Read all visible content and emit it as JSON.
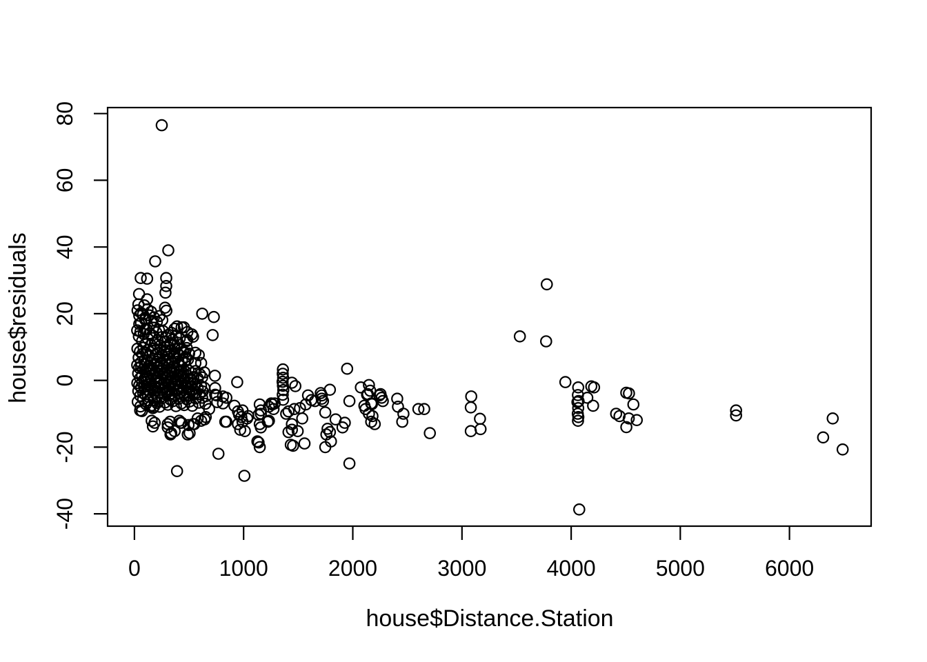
{
  "chart_data": {
    "type": "scatter",
    "title": "",
    "xlabel": "house$Distance.Station",
    "ylabel": "house$residuals",
    "x_ticks": [
      0,
      1000,
      2000,
      3000,
      4000,
      5000,
      6000
    ],
    "y_ticks": [
      -40,
      -20,
      0,
      20,
      40,
      60,
      80
    ],
    "xlim": [
      -246,
      6748
    ],
    "ylim": [
      -43.7,
      81.8
    ],
    "grid": false,
    "legend": "none",
    "marker": "open-circle",
    "marker_color": "#000000",
    "background_color": "#ffffff",
    "points": [
      [
        250,
        76.5
      ],
      [
        310,
        39
      ],
      [
        190,
        35.7
      ],
      [
        57,
        30.7
      ],
      [
        116,
        30.5
      ],
      [
        291,
        30.7
      ],
      [
        291,
        28.3
      ],
      [
        284,
        26.3
      ],
      [
        42,
        25.9
      ],
      [
        116,
        24.3
      ],
      [
        36,
        22.8
      ],
      [
        90,
        22.5
      ],
      [
        280,
        21.8
      ],
      [
        292,
        20.9
      ],
      [
        44,
        19.4
      ],
      [
        101,
        18.6
      ],
      [
        621,
        20
      ],
      [
        727,
        19
      ],
      [
        158,
        17.9
      ],
      [
        390,
        16.2
      ],
      [
        432,
        15.9
      ],
      [
        44,
        16.9
      ],
      [
        95,
        15.2
      ],
      [
        485,
        14.5
      ],
      [
        526,
        13.8
      ],
      [
        537,
        13.1
      ],
      [
        474,
        11.7
      ],
      [
        716,
        13.6
      ],
      [
        453,
        15.9
      ],
      [
        368,
        15.5
      ],
      [
        484,
        12.1
      ],
      [
        463,
        8.3
      ],
      [
        558,
        8.3
      ],
      [
        589,
        7.6
      ],
      [
        611,
        5.2
      ],
      [
        558,
        5.2
      ],
      [
        737,
        1.4
      ],
      [
        941,
        -0.5
      ],
      [
        739,
        -2.3
      ],
      [
        739,
        -4.3
      ],
      [
        752,
        -4.5
      ],
      [
        811,
        -4.8
      ],
      [
        842,
        -5.2
      ],
      [
        758,
        -6.5
      ],
      [
        811,
        -6.9
      ],
      [
        916,
        -7.6
      ],
      [
        1148,
        -7.2
      ],
      [
        1253,
        -6.9
      ],
      [
        990,
        -9
      ],
      [
        1042,
        -10.7
      ],
      [
        958,
        -10.3
      ],
      [
        1158,
        -10
      ],
      [
        1232,
        -12.1
      ],
      [
        1148,
        -13.1
      ],
      [
        1158,
        -14.1
      ],
      [
        990,
        -12.4
      ],
      [
        1011,
        -15.2
      ],
      [
        842,
        -12.4
      ],
      [
        1126,
        -18.3
      ],
      [
        1148,
        -20
      ],
      [
        769,
        -22
      ],
      [
        390,
        -27.2
      ],
      [
        1007,
        -28.6
      ],
      [
        832,
        -12.4
      ],
      [
        948,
        -9.3
      ],
      [
        979,
        -11
      ],
      [
        1032,
        -11.4
      ],
      [
        948,
        -13.1
      ],
      [
        969,
        -14.8
      ],
      [
        1158,
        -9
      ],
      [
        1137,
        -10.3
      ],
      [
        1221,
        -12.4
      ],
      [
        1137,
        -18.6
      ],
      [
        1263,
        -7.2
      ],
      [
        1274,
        -8.6
      ],
      [
        1411,
        -9.3
      ],
      [
        1442,
        -13.1
      ],
      [
        1411,
        -15.5
      ],
      [
        1432,
        -19.3
      ],
      [
        52,
        -9
      ],
      [
        147,
        -7.9
      ],
      [
        169,
        -8.3
      ],
      [
        158,
        -12.1
      ],
      [
        169,
        -13.8
      ],
      [
        305,
        -14.1
      ],
      [
        330,
        -16.2
      ],
      [
        305,
        -13.1
      ],
      [
        411,
        -12.1
      ],
      [
        432,
        -12.7
      ],
      [
        495,
        -13.4
      ],
      [
        537,
        -13.1
      ],
      [
        505,
        -15.8
      ],
      [
        579,
        -11.4
      ],
      [
        653,
        -11
      ],
      [
        684,
        -8.6
      ],
      [
        68,
        -9.2
      ],
      [
        179,
        -7.9
      ],
      [
        185,
        -12.7
      ],
      [
        337,
        -15.8
      ],
      [
        368,
        -15.2
      ],
      [
        327,
        -12.4
      ],
      [
        421,
        -12.7
      ],
      [
        488,
        -16.2
      ],
      [
        548,
        -13.1
      ],
      [
        611,
        -12.1
      ],
      [
        642,
        -11.7
      ],
      [
        1360,
        3.3
      ],
      [
        1358,
        2
      ],
      [
        1362,
        0.8
      ],
      [
        1357,
        -0.4
      ],
      [
        1360,
        -1.6
      ],
      [
        1363,
        -2.9
      ],
      [
        1358,
        -4.3
      ],
      [
        1361,
        -5.8
      ],
      [
        1442,
        -0.7
      ],
      [
        1474,
        -1.7
      ],
      [
        1948,
        3.5
      ],
      [
        1706,
        -3.8
      ],
      [
        1716,
        -4.5
      ],
      [
        1716,
        -5.5
      ],
      [
        1727,
        -6.2
      ],
      [
        1790,
        -2.8
      ],
      [
        1590,
        -4.5
      ],
      [
        1621,
        -5.9
      ],
      [
        1653,
        -6.2
      ],
      [
        1232,
        -7.9
      ],
      [
        1284,
        -6.9
      ],
      [
        1390,
        -10
      ],
      [
        1464,
        -8.6
      ],
      [
        1516,
        -8.3
      ],
      [
        1569,
        -7.2
      ],
      [
        1537,
        -11.4
      ],
      [
        1442,
        -14.8
      ],
      [
        1495,
        -15.2
      ],
      [
        1453,
        -19.6
      ],
      [
        1558,
        -18.9
      ],
      [
        1748,
        -9.6
      ],
      [
        1769,
        -14.5
      ],
      [
        1790,
        -15.5
      ],
      [
        1758,
        -16.2
      ],
      [
        1800,
        -18.3
      ],
      [
        1748,
        -20
      ],
      [
        1843,
        -11.7
      ],
      [
        1927,
        -12.7
      ],
      [
        1906,
        -14.1
      ],
      [
        1969,
        -6.2
      ],
      [
        1969,
        -24.9
      ],
      [
        2074,
        -2.1
      ],
      [
        2148,
        -1.4
      ],
      [
        2159,
        -3.1
      ],
      [
        2137,
        -4.1
      ],
      [
        2131,
        -4.3
      ],
      [
        2169,
        -6.9
      ],
      [
        2175,
        -7.1
      ],
      [
        2243,
        -4.5
      ],
      [
        2264,
        -5.2
      ],
      [
        2275,
        -6.2
      ],
      [
        2254,
        -4.1
      ],
      [
        2106,
        -7.6
      ],
      [
        2117,
        -8.6
      ],
      [
        2148,
        -10
      ],
      [
        2180,
        -10.7
      ],
      [
        2169,
        -12.4
      ],
      [
        2201,
        -13.1
      ],
      [
        2407,
        -5.5
      ],
      [
        2414,
        -7.9
      ],
      [
        2464,
        -10
      ],
      [
        2453,
        -12.4
      ],
      [
        2601,
        -8.6
      ],
      [
        2654,
        -8.6
      ],
      [
        2706,
        -15.8
      ],
      [
        3085,
        -4.8
      ],
      [
        3081,
        -8.1
      ],
      [
        3165,
        -11.5
      ],
      [
        3081,
        -15.2
      ],
      [
        3170,
        -14.6
      ],
      [
        3530,
        13.2
      ],
      [
        3771,
        11.7
      ],
      [
        3777,
        28.8
      ],
      [
        3947,
        -0.5
      ],
      [
        4065,
        -2.1
      ],
      [
        4062,
        -4.4
      ],
      [
        4068,
        -6.2
      ],
      [
        4058,
        -6.5
      ],
      [
        4065,
        -8.3
      ],
      [
        4061,
        -10
      ],
      [
        4066,
        -11
      ],
      [
        4063,
        -12.1
      ],
      [
        4148,
        -5.2
      ],
      [
        4185,
        -1.8
      ],
      [
        4210,
        -2.1
      ],
      [
        4201,
        -7.6
      ],
      [
        4074,
        -38.7
      ],
      [
        4412,
        -10
      ],
      [
        4443,
        -10.7
      ],
      [
        4528,
        -11.4
      ],
      [
        4601,
        -11.9
      ],
      [
        4506,
        -14
      ],
      [
        4505,
        -3.7
      ],
      [
        4530,
        -3.9
      ],
      [
        4570,
        -7.2
      ],
      [
        5511,
        -9
      ],
      [
        5511,
        -10.5
      ],
      [
        6396,
        -11.4
      ],
      [
        6308,
        -17.1
      ],
      [
        6487,
        -20.7
      ],
      [
        28,
        21
      ],
      [
        62,
        20.2
      ],
      [
        79,
        19.8
      ],
      [
        120,
        21.3
      ],
      [
        135,
        19.5
      ],
      [
        152,
        20.6
      ],
      [
        98,
        18.2
      ],
      [
        178,
        18.9
      ],
      [
        205,
        17.6
      ],
      [
        230,
        19.3
      ],
      [
        255,
        18.1
      ],
      [
        60,
        17.2
      ],
      [
        25,
        15
      ],
      [
        40,
        13.2
      ],
      [
        55,
        14.6
      ],
      [
        70,
        11.8
      ],
      [
        85,
        13.9
      ],
      [
        100,
        10.9
      ],
      [
        112,
        15.3
      ],
      [
        125,
        12.4
      ],
      [
        138,
        14.1
      ],
      [
        150,
        10.6
      ],
      [
        163,
        13.5
      ],
      [
        175,
        15.8
      ],
      [
        188,
        11.2
      ],
      [
        200,
        14.4
      ],
      [
        212,
        12
      ],
      [
        225,
        15.1
      ],
      [
        238,
        10.4
      ],
      [
        250,
        13
      ],
      [
        262,
        14.8
      ],
      [
        275,
        11.5
      ],
      [
        288,
        12.9
      ],
      [
        300,
        10.2
      ],
      [
        312,
        13.7
      ],
      [
        325,
        11
      ],
      [
        338,
        14.3
      ],
      [
        350,
        12.2
      ],
      [
        365,
        10.7
      ],
      [
        380,
        13.4
      ],
      [
        398,
        11.3
      ],
      [
        415,
        12.6
      ],
      [
        27,
        9.5
      ],
      [
        38,
        6.8
      ],
      [
        50,
        8.7
      ],
      [
        60,
        5.4
      ],
      [
        72,
        7.9
      ],
      [
        83,
        9.8
      ],
      [
        94,
        6.1
      ],
      [
        105,
        8.3
      ],
      [
        116,
        5.8
      ],
      [
        127,
        9.1
      ],
      [
        138,
        7.2
      ],
      [
        149,
        5.2
      ],
      [
        160,
        8.9
      ],
      [
        171,
        6.5
      ],
      [
        182,
        9.6
      ],
      [
        193,
        7.7
      ],
      [
        204,
        5.6
      ],
      [
        215,
        8.1
      ],
      [
        226,
        6.9
      ],
      [
        237,
        9.3
      ],
      [
        248,
        5.1
      ],
      [
        259,
        7.4
      ],
      [
        270,
        8.6
      ],
      [
        281,
        6.2
      ],
      [
        292,
        9
      ],
      [
        303,
        5.9
      ],
      [
        314,
        7.8
      ],
      [
        325,
        6.4
      ],
      [
        336,
        8.8
      ],
      [
        347,
        5.3
      ],
      [
        358,
        7.1
      ],
      [
        369,
        9.4
      ],
      [
        380,
        6.6
      ],
      [
        391,
        8.2
      ],
      [
        402,
        5.7
      ],
      [
        413,
        7.5
      ],
      [
        424,
        9.2
      ],
      [
        435,
        6
      ],
      [
        446,
        8.4
      ],
      [
        457,
        5.5
      ],
      [
        468,
        7
      ],
      [
        479,
        9.7
      ],
      [
        490,
        6.3
      ],
      [
        501,
        8
      ],
      [
        25,
        4.6
      ],
      [
        34,
        2.1
      ],
      [
        43,
        3.8
      ],
      [
        52,
        0.7
      ],
      [
        61,
        4.2
      ],
      [
        70,
        1.5
      ],
      [
        79,
        3.3
      ],
      [
        88,
        0.3
      ],
      [
        97,
        4.9
      ],
      [
        106,
        2.6
      ],
      [
        115,
        3.6
      ],
      [
        124,
        1.1
      ],
      [
        133,
        4.4
      ],
      [
        142,
        2.9
      ],
      [
        151,
        0.5
      ],
      [
        160,
        3.1
      ],
      [
        169,
        1.8
      ],
      [
        178,
        4.7
      ],
      [
        187,
        2.3
      ],
      [
        196,
        0.9
      ],
      [
        205,
        3.9
      ],
      [
        214,
        1.3
      ],
      [
        223,
        4.1
      ],
      [
        232,
        2.7
      ],
      [
        241,
        0.4
      ],
      [
        250,
        3.5
      ],
      [
        259,
        1.9
      ],
      [
        268,
        4.3
      ],
      [
        277,
        2.2
      ],
      [
        286,
        0.8
      ],
      [
        295,
        3.7
      ],
      [
        304,
        1.6
      ],
      [
        313,
        4.5
      ],
      [
        322,
        2.5
      ],
      [
        331,
        0.6
      ],
      [
        340,
        3.2
      ],
      [
        349,
        1.2
      ],
      [
        358,
        4
      ],
      [
        367,
        2.8
      ],
      [
        376,
        0.2
      ],
      [
        385,
        3.4
      ],
      [
        394,
        1.7
      ],
      [
        403,
        4.8
      ],
      [
        412,
        2.4
      ],
      [
        421,
        1
      ],
      [
        430,
        3
      ],
      [
        439,
        1.4
      ],
      [
        448,
        2
      ],
      [
        457,
        0.1
      ],
      [
        466,
        2.6
      ],
      [
        480,
        1.5
      ],
      [
        495,
        3
      ],
      [
        510,
        0.5
      ],
      [
        525,
        2.2
      ],
      [
        540,
        1
      ],
      [
        560,
        2.8
      ],
      [
        580,
        0.6
      ],
      [
        600,
        1.8
      ],
      [
        620,
        0.9
      ],
      [
        640,
        2.4
      ],
      [
        26,
        -0.8
      ],
      [
        35,
        -3.2
      ],
      [
        44,
        -1.5
      ],
      [
        53,
        -4.6
      ],
      [
        62,
        -2.1
      ],
      [
        71,
        -0.4
      ],
      [
        80,
        -3.8
      ],
      [
        89,
        -1.9
      ],
      [
        98,
        -4.2
      ],
      [
        107,
        -0.6
      ],
      [
        116,
        -2.8
      ],
      [
        125,
        -4.9
      ],
      [
        134,
        -1.2
      ],
      [
        143,
        -3.5
      ],
      [
        152,
        -0.9
      ],
      [
        161,
        -2.4
      ],
      [
        170,
        -4.4
      ],
      [
        179,
        -1.7
      ],
      [
        188,
        -3
      ],
      [
        197,
        -0.3
      ],
      [
        206,
        -4.7
      ],
      [
        215,
        -2.2
      ],
      [
        224,
        -1
      ],
      [
        233,
        -3.6
      ],
      [
        242,
        -4.8
      ],
      [
        251,
        -1.4
      ],
      [
        260,
        -2.9
      ],
      [
        269,
        -0.7
      ],
      [
        278,
        -4.1
      ],
      [
        287,
        -2
      ],
      [
        296,
        -3.3
      ],
      [
        305,
        -1.1
      ],
      [
        314,
        -4.5
      ],
      [
        323,
        -2.6
      ],
      [
        332,
        -0.5
      ],
      [
        341,
        -3.9
      ],
      [
        350,
        -1.8
      ],
      [
        359,
        -2.5
      ],
      [
        368,
        -4.3
      ],
      [
        377,
        -1.3
      ],
      [
        386,
        -3.1
      ],
      [
        395,
        -0.2
      ],
      [
        404,
        -2.7
      ],
      [
        413,
        -4
      ],
      [
        422,
        -1.6
      ],
      [
        431,
        -3.4
      ],
      [
        440,
        -0.9
      ],
      [
        449,
        -2.3
      ],
      [
        458,
        -4.6
      ],
      [
        467,
        -1.5
      ],
      [
        476,
        -3.7
      ],
      [
        485,
        -2.1
      ],
      [
        494,
        -0.6
      ],
      [
        503,
        -4.4
      ],
      [
        512,
        -1.9
      ],
      [
        521,
        -3.2
      ],
      [
        530,
        -0.8
      ],
      [
        539,
        -2.8
      ],
      [
        548,
        -4.2
      ],
      [
        557,
        -1.2
      ],
      [
        566,
        -3.6
      ],
      [
        580,
        -2.4
      ],
      [
        595,
        -4.1
      ],
      [
        610,
        -1.7
      ],
      [
        625,
        -3.3
      ],
      [
        640,
        -2.2
      ],
      [
        655,
        -4.7
      ],
      [
        30,
        -6.4
      ],
      [
        55,
        -7.8
      ],
      [
        80,
        -5.6
      ],
      [
        105,
        -7.1
      ],
      [
        130,
        -6
      ],
      [
        155,
        -7.5
      ],
      [
        180,
        -5.9
      ],
      [
        205,
        -6.8
      ],
      [
        230,
        -7.9
      ],
      [
        255,
        -5.3
      ],
      [
        280,
        -6.6
      ],
      [
        305,
        -7.3
      ],
      [
        330,
        -5.8
      ],
      [
        355,
        -6.2
      ],
      [
        380,
        -7.7
      ],
      [
        405,
        -5.5
      ],
      [
        430,
        -6.9
      ],
      [
        455,
        -7.4
      ],
      [
        480,
        -5.7
      ],
      [
        505,
        -6.3
      ],
      [
        530,
        -7.6
      ],
      [
        560,
        -5.4
      ],
      [
        590,
        -6.7
      ],
      [
        620,
        -5.2
      ],
      [
        650,
        -7
      ]
    ]
  }
}
